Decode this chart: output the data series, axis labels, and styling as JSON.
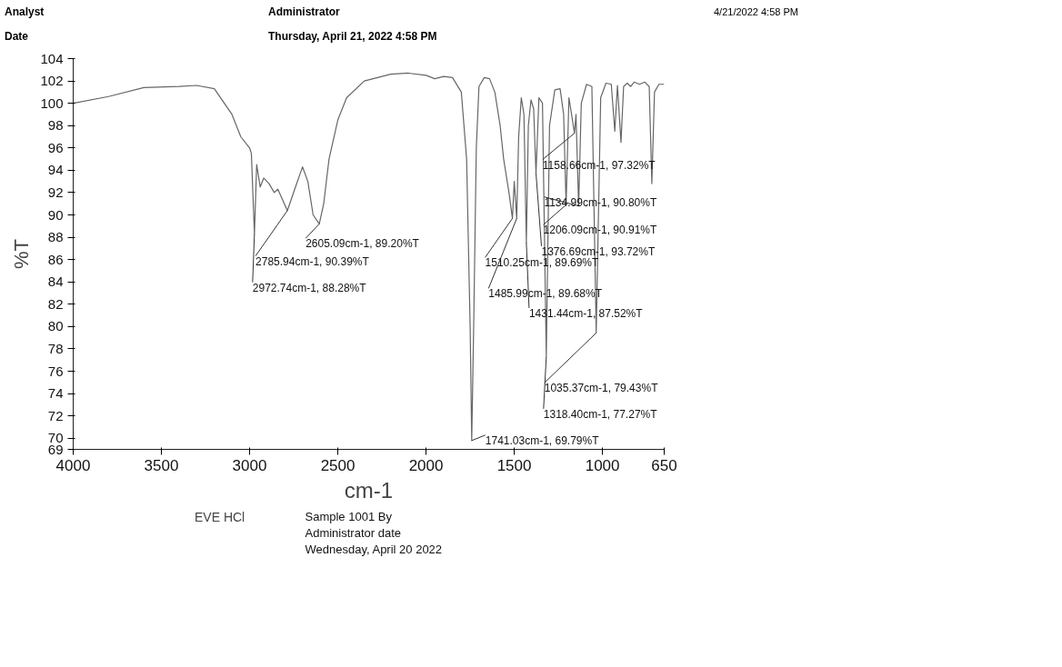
{
  "chart_data": {
    "type": "line",
    "xlabel": "cm-1",
    "ylabel": "%T",
    "xlim": [
      4000,
      650
    ],
    "xticks": [
      4000,
      3500,
      3000,
      2500,
      2000,
      1500,
      1000,
      650
    ],
    "ylim": [
      69,
      104
    ],
    "yticks": [
      69,
      70,
      72,
      74,
      76,
      78,
      80,
      82,
      84,
      86,
      88,
      90,
      92,
      94,
      96,
      98,
      100,
      102,
      104
    ],
    "grid": false,
    "legend": "bottom left",
    "marker": "none",
    "line_style": "solid",
    "x": [
      4000,
      3800,
      3600,
      3400,
      3300,
      3200,
      3100,
      3050,
      3000,
      2990,
      2972.74,
      2960,
      2940,
      2920,
      2890,
      2860,
      2840,
      2785.94,
      2740,
      2700,
      2670,
      2640,
      2605.09,
      2580,
      2550,
      2500,
      2450,
      2350,
      2200,
      2100,
      2000,
      1950,
      1900,
      1850,
      1800,
      1770,
      1750,
      1741.03,
      1730,
      1715,
      1700,
      1670,
      1640,
      1610,
      1580,
      1560,
      1530,
      1510.25,
      1500,
      1485.99,
      1475,
      1460,
      1445,
      1431.44,
      1420,
      1405,
      1390,
      1376.69,
      1360,
      1340,
      1318.4,
      1300,
      1270,
      1240,
      1220,
      1206.09,
      1190,
      1175,
      1158.66,
      1150,
      1134.99,
      1120,
      1090,
      1060,
      1035.37,
      1010,
      980,
      950,
      930,
      915,
      895,
      880,
      860,
      840,
      820,
      790,
      760,
      735,
      720,
      705,
      680,
      650
    ],
    "series": [
      {
        "name": "EVE HCl",
        "color": "#666666",
        "values": [
          100.0,
          100.6,
          101.4,
          101.5,
          101.6,
          101.3,
          99,
          97,
          96,
          95.5,
          88.28,
          94.5,
          92.5,
          93.3,
          92.8,
          92.0,
          92.3,
          90.39,
          92.5,
          94.3,
          93,
          90,
          89.2,
          91,
          95,
          98.5,
          100.5,
          102,
          102.6,
          102.7,
          102.5,
          102.2,
          102.4,
          102.3,
          101,
          95,
          80,
          69.79,
          80,
          96,
          101.5,
          102.3,
          102.2,
          101,
          98,
          95,
          92,
          89.69,
          93,
          89.68,
          97,
          100.5,
          99,
          87.52,
          98,
          100.3,
          99.5,
          93.72,
          100.5,
          100,
          77.27,
          98,
          101.2,
          101.3,
          99,
          90.91,
          100.5,
          99,
          97.32,
          99,
          90.8,
          100,
          101.7,
          101.5,
          79.43,
          100.5,
          101.8,
          101.7,
          97.5,
          101.6,
          96.5,
          101.5,
          101.8,
          101.5,
          101.9,
          101.7,
          101.9,
          101.5,
          92.8,
          101.0,
          101.7,
          101.7
        ]
      }
    ],
    "annotations": [
      "Analyst",
      "Administrator",
      "Date",
      "Thursday, April 21, 2022 4:58 PM",
      "4/21/2022 4:58 PM",
      "Sample 1001 By Administrator date Wednesday, April 20 2022",
      {
        "text": "2972.74cm-1, 88.28%T",
        "x": 2972.74,
        "y": 88.28
      },
      {
        "text": "2785.94cm-1, 90.39%T",
        "x": 2785.94,
        "y": 90.39
      },
      {
        "text": "2605.09cm-1, 89.20%T",
        "x": 2605.09,
        "y": 89.2
      },
      {
        "text": "1741.03cm-1, 69.79%T",
        "x": 1741.03,
        "y": 69.79
      },
      {
        "text": "1510.25cm-1, 89.69%T",
        "x": 1510.25,
        "y": 89.69
      },
      {
        "text": "1485.99cm-1, 89.68%T",
        "x": 1485.99,
        "y": 89.68
      },
      {
        "text": "1431.44cm-1, 87.52%T",
        "x": 1431.44,
        "y": 87.52
      },
      {
        "text": "1376.69cm-1, 93.72%T",
        "x": 1376.69,
        "y": 93.72
      },
      {
        "text": "1318.40cm-1, 77.27%T",
        "x": 1318.4,
        "y": 77.27
      },
      {
        "text": "1206.09cm-1, 90.91%T",
        "x": 1206.09,
        "y": 90.91
      },
      {
        "text": "1158.66cm-1, 97.32%T",
        "x": 1158.66,
        "y": 97.32
      },
      {
        "text": "1134.99cm-1, 90.80%T",
        "x": 1134.99,
        "y": 90.8
      },
      {
        "text": "1035.37cm-1, 79.43%T",
        "x": 1035.37,
        "y": 79.43
      }
    ]
  }
}
